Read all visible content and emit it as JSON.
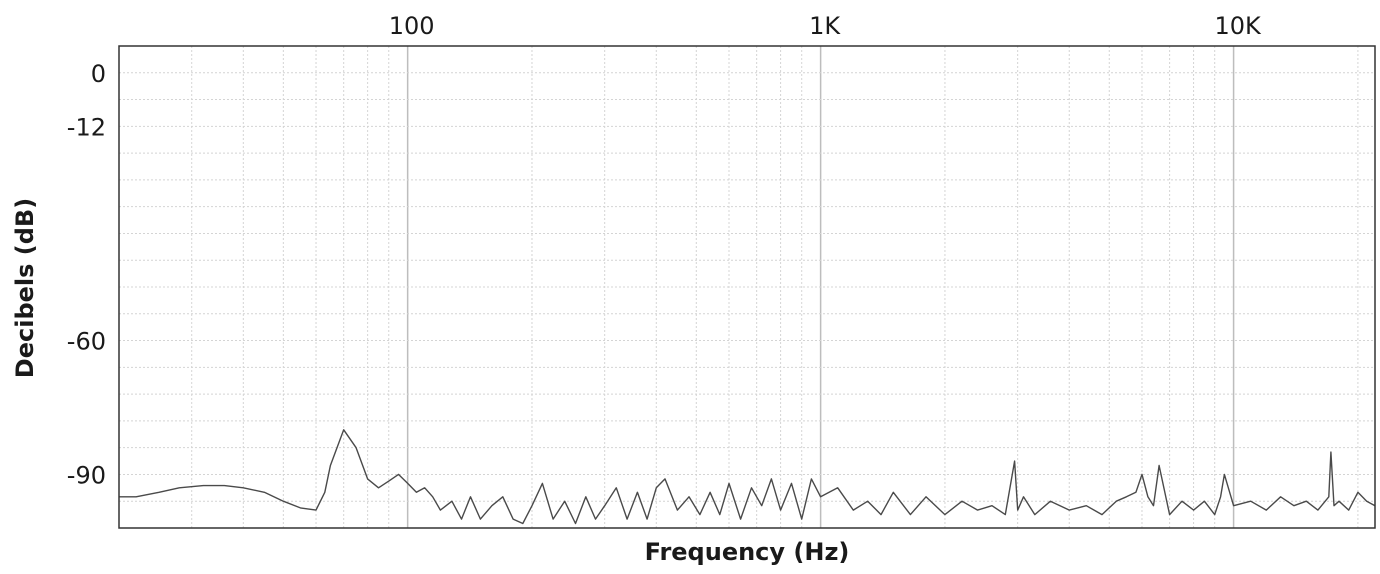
{
  "chart_data": {
    "type": "line",
    "title": "",
    "xlabel": "Frequency (Hz)",
    "ylabel": "Decibels (dB)",
    "x_scale": "log",
    "xlim": [
      20,
      22000
    ],
    "ylim": [
      -102,
      6
    ],
    "grid": true,
    "legend": "none",
    "x_ticks": [
      {
        "value": 100,
        "label": "100"
      },
      {
        "value": 1000,
        "label": "1K"
      },
      {
        "value": 10000,
        "label": "10K"
      }
    ],
    "y_ticks": [
      {
        "value": 0,
        "label": "0"
      },
      {
        "value": -12,
        "label": "-12"
      },
      {
        "value": -60,
        "label": "-60"
      },
      {
        "value": -90,
        "label": "-90"
      }
    ],
    "series": [
      {
        "x": [
          20,
          22,
          25,
          28,
          32,
          36,
          40,
          45,
          50,
          55,
          60,
          63,
          65,
          70,
          75,
          80,
          85,
          90,
          95,
          100,
          105,
          110,
          115,
          120,
          128,
          135,
          142,
          150,
          160,
          170,
          180,
          190,
          200,
          212,
          225,
          240,
          255,
          270,
          285,
          300,
          320,
          340,
          360,
          380,
          400,
          420,
          450,
          480,
          510,
          540,
          570,
          600,
          640,
          680,
          720,
          760,
          800,
          850,
          900,
          950,
          1000,
          1100,
          1200,
          1300,
          1400,
          1500,
          1650,
          1800,
          2000,
          2200,
          2400,
          2600,
          2800,
          2950,
          3000,
          3100,
          3300,
          3600,
          4000,
          4400,
          4800,
          5200,
          5500,
          5800,
          6000,
          6200,
          6400,
          6600,
          7000,
          7500,
          8000,
          8500,
          9000,
          9300,
          9500,
          10000,
          11000,
          12000,
          13000,
          14000,
          15000,
          16000,
          17000,
          17200,
          17500,
          18000,
          19000,
          20000,
          21000,
          22000
        ],
        "y": [
          -95,
          -95,
          -94,
          -93,
          -92.5,
          -92.5,
          -93,
          -94,
          -96,
          -97.5,
          -98,
          -94,
          -88,
          -80,
          -84,
          -91,
          -93,
          -91.5,
          -90,
          -92,
          -94,
          -93,
          -95,
          -98,
          -96,
          -100,
          -95,
          -100,
          -97,
          -95,
          -100,
          -101,
          -97,
          -92,
          -100,
          -96,
          -101,
          -95,
          -100,
          -97,
          -93,
          -100,
          -94,
          -100,
          -93,
          -91,
          -98,
          -95,
          -99,
          -94,
          -99,
          -92,
          -100,
          -93,
          -97,
          -91,
          -98,
          -92,
          -100,
          -91,
          -95,
          -93,
          -98,
          -96,
          -99,
          -94,
          -99,
          -95,
          -99,
          -96,
          -98,
          -97,
          -99,
          -87,
          -98,
          -95,
          -99,
          -96,
          -98,
          -97,
          -99,
          -96,
          -95,
          -94,
          -90,
          -95,
          -97,
          -88,
          -99,
          -96,
          -98,
          -96,
          -99,
          -95,
          -90,
          -97,
          -96,
          -98,
          -95,
          -97,
          -96,
          -98,
          -95,
          -85,
          -97,
          -96,
          -98,
          -94,
          -96,
          -97
        ]
      }
    ]
  }
}
